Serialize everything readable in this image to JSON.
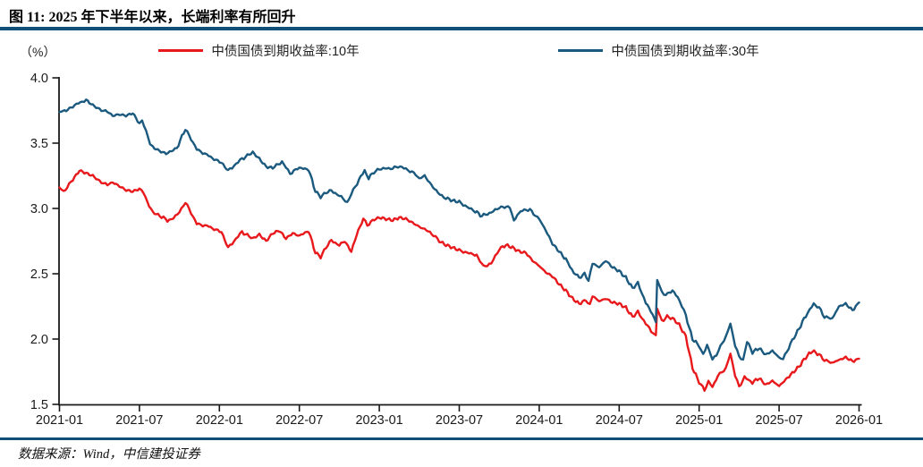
{
  "header": {
    "title": "图 11: 2025 年下半年以来，长端利率有所回升"
  },
  "unit_label": "（%）",
  "legend": {
    "items": [
      {
        "label": "中债国债到期收益率:10年",
        "color": "#e8191c"
      },
      {
        "label": "中债国债到期收益率:30年",
        "color": "#1b5a7e"
      }
    ]
  },
  "footer": {
    "text": "数据来源：Wind，中信建投证券"
  },
  "colors": {
    "divider": "#124f78",
    "axis": "#1a1a1a",
    "tick_text": "#1a1a1a"
  },
  "chart_data": {
    "type": "line",
    "title": "图 11: 2025 年下半年以来，长端利率有所回升",
    "xlabel": "",
    "ylabel": "（%）",
    "ylim": [
      1.5,
      4.0
    ],
    "y_ticks": [
      1.5,
      2.0,
      2.5,
      3.0,
      3.5,
      4.0
    ],
    "x_tick_labels": [
      "2021-01",
      "2021-07",
      "2022-01",
      "2022-07",
      "2023-01",
      "2023-07",
      "2024-01",
      "2024-07",
      "2025-01",
      "2025-07",
      "2026-01"
    ],
    "x_unit": "months_since_2021_01",
    "grid": false,
    "legend_position": "top",
    "series": [
      {
        "name": "中债国债到期收益率:10年",
        "color": "#e8191c",
        "points": [
          [
            0,
            3.16
          ],
          [
            0.3,
            3.13
          ],
          [
            1,
            3.22
          ],
          [
            1.5,
            3.29
          ],
          [
            2,
            3.27
          ],
          [
            2.5,
            3.25
          ],
          [
            3,
            3.21
          ],
          [
            3.6,
            3.18
          ],
          [
            4,
            3.2
          ],
          [
            4.5,
            3.17
          ],
          [
            5,
            3.14
          ],
          [
            5.5,
            3.13
          ],
          [
            6,
            3.15
          ],
          [
            6.3,
            3.12
          ],
          [
            6.6,
            3.05
          ],
          [
            7,
            2.97
          ],
          [
            7.8,
            2.93
          ],
          [
            8.1,
            2.9
          ],
          [
            8.85,
            2.95
          ],
          [
            9.45,
            3.05
          ],
          [
            10.3,
            2.88
          ],
          [
            11.2,
            2.86
          ],
          [
            12.15,
            2.82
          ],
          [
            12.65,
            2.7
          ],
          [
            13.7,
            2.82
          ],
          [
            14.5,
            2.77
          ],
          [
            15,
            2.8
          ],
          [
            15.5,
            2.75
          ],
          [
            16,
            2.81
          ],
          [
            16.5,
            2.83
          ],
          [
            17,
            2.77
          ],
          [
            17.5,
            2.81
          ],
          [
            18,
            2.79
          ],
          [
            18.7,
            2.83
          ],
          [
            19.2,
            2.66
          ],
          [
            19.6,
            2.63
          ],
          [
            20,
            2.7
          ],
          [
            20.4,
            2.76
          ],
          [
            21,
            2.72
          ],
          [
            21.4,
            2.75
          ],
          [
            21.9,
            2.67
          ],
          [
            22.3,
            2.8
          ],
          [
            22.8,
            2.92
          ],
          [
            23.1,
            2.87
          ],
          [
            23.5,
            2.91
          ],
          [
            24,
            2.93
          ],
          [
            24.5,
            2.92
          ],
          [
            25,
            2.91
          ],
          [
            25.5,
            2.93
          ],
          [
            26,
            2.92
          ],
          [
            26.5,
            2.89
          ],
          [
            27,
            2.86
          ],
          [
            27.8,
            2.82
          ],
          [
            28.5,
            2.75
          ],
          [
            29,
            2.72
          ],
          [
            29.5,
            2.7
          ],
          [
            30,
            2.68
          ],
          [
            30.6,
            2.66
          ],
          [
            31.3,
            2.64
          ],
          [
            31.8,
            2.56
          ],
          [
            32.4,
            2.58
          ],
          [
            33,
            2.69
          ],
          [
            33.5,
            2.72
          ],
          [
            34,
            2.7
          ],
          [
            34.5,
            2.67
          ],
          [
            35,
            2.66
          ],
          [
            35.5,
            2.6
          ],
          [
            36,
            2.56
          ],
          [
            36.5,
            2.51
          ],
          [
            37,
            2.48
          ],
          [
            37.5,
            2.42
          ],
          [
            38,
            2.37
          ],
          [
            38.5,
            2.31
          ],
          [
            39,
            2.27
          ],
          [
            39.5,
            2.3
          ],
          [
            39.8,
            2.26
          ],
          [
            40,
            2.33
          ],
          [
            40.5,
            2.29
          ],
          [
            41,
            2.31
          ],
          [
            41.5,
            2.28
          ],
          [
            42,
            2.27
          ],
          [
            42.5,
            2.24
          ],
          [
            43,
            2.17
          ],
          [
            43.4,
            2.21
          ],
          [
            44,
            2.12
          ],
          [
            44.4,
            2.06
          ],
          [
            44.75,
            2.03
          ],
          [
            44.85,
            2.23
          ],
          [
            45.2,
            2.14
          ],
          [
            45.6,
            2.17
          ],
          [
            46,
            2.16
          ],
          [
            46.5,
            2.11
          ],
          [
            47,
            2.02
          ],
          [
            47.5,
            1.78
          ],
          [
            48,
            1.67
          ],
          [
            48.4,
            1.61
          ],
          [
            48.7,
            1.67
          ],
          [
            49,
            1.63
          ],
          [
            49.4,
            1.72
          ],
          [
            50,
            1.78
          ],
          [
            50.35,
            1.89
          ],
          [
            50.7,
            1.72
          ],
          [
            51,
            1.63
          ],
          [
            51.4,
            1.71
          ],
          [
            52,
            1.67
          ],
          [
            52.5,
            1.7
          ],
          [
            53,
            1.65
          ],
          [
            53.5,
            1.68
          ],
          [
            54,
            1.64
          ],
          [
            54.5,
            1.69
          ],
          [
            55,
            1.74
          ],
          [
            55.5,
            1.79
          ],
          [
            56,
            1.86
          ],
          [
            56.5,
            1.91
          ],
          [
            57,
            1.88
          ],
          [
            57.4,
            1.84
          ],
          [
            58,
            1.82
          ],
          [
            58.5,
            1.84
          ],
          [
            59,
            1.86
          ],
          [
            59.5,
            1.83
          ],
          [
            60,
            1.85
          ]
        ]
      },
      {
        "name": "中债国债到期收益率:30年",
        "color": "#1b5a7e",
        "points": [
          [
            0,
            3.74
          ],
          [
            0.5,
            3.75
          ],
          [
            1,
            3.78
          ],
          [
            1.7,
            3.82
          ],
          [
            2,
            3.83
          ],
          [
            2.5,
            3.79
          ],
          [
            3,
            3.76
          ],
          [
            3.6,
            3.74
          ],
          [
            4,
            3.71
          ],
          [
            4.5,
            3.72
          ],
          [
            5,
            3.71
          ],
          [
            5.5,
            3.73
          ],
          [
            6,
            3.65
          ],
          [
            6.2,
            3.68
          ],
          [
            6.8,
            3.5
          ],
          [
            7,
            3.47
          ],
          [
            7.5,
            3.44
          ],
          [
            8,
            3.42
          ],
          [
            8.8,
            3.46
          ],
          [
            9.45,
            3.61
          ],
          [
            10.3,
            3.45
          ],
          [
            11.2,
            3.4
          ],
          [
            12.15,
            3.35
          ],
          [
            12.65,
            3.29
          ],
          [
            13.7,
            3.38
          ],
          [
            14.5,
            3.43
          ],
          [
            15,
            3.38
          ],
          [
            15.5,
            3.32
          ],
          [
            16,
            3.31
          ],
          [
            16.7,
            3.36
          ],
          [
            17.3,
            3.27
          ],
          [
            18,
            3.31
          ],
          [
            18.7,
            3.3
          ],
          [
            19.2,
            3.13
          ],
          [
            19.6,
            3.09
          ],
          [
            20,
            3.12
          ],
          [
            20.4,
            3.14
          ],
          [
            21,
            3.1
          ],
          [
            21.6,
            3.05
          ],
          [
            22.2,
            3.17
          ],
          [
            22.6,
            3.24
          ],
          [
            22.9,
            3.29
          ],
          [
            23.2,
            3.23
          ],
          [
            23.6,
            3.28
          ],
          [
            24,
            3.3
          ],
          [
            25,
            3.31
          ],
          [
            25.4,
            3.32
          ],
          [
            26,
            3.3
          ],
          [
            26.6,
            3.27
          ],
          [
            27,
            3.23
          ],
          [
            27.4,
            3.25
          ],
          [
            27.9,
            3.18
          ],
          [
            28.4,
            3.12
          ],
          [
            29,
            3.08
          ],
          [
            29.5,
            3.06
          ],
          [
            30,
            3.05
          ],
          [
            30.6,
            3.01
          ],
          [
            31.2,
            2.98
          ],
          [
            31.7,
            2.94
          ],
          [
            32.4,
            2.97
          ],
          [
            33,
            3.01
          ],
          [
            33.8,
            3.01
          ],
          [
            34.1,
            2.91
          ],
          [
            34.6,
            2.98
          ],
          [
            35.3,
            2.99
          ],
          [
            36,
            2.92
          ],
          [
            36.5,
            2.83
          ],
          [
            37,
            2.73
          ],
          [
            37.5,
            2.67
          ],
          [
            38,
            2.61
          ],
          [
            38.6,
            2.51
          ],
          [
            39,
            2.47
          ],
          [
            39.4,
            2.5
          ],
          [
            39.7,
            2.45
          ],
          [
            40,
            2.58
          ],
          [
            40.5,
            2.55
          ],
          [
            41,
            2.6
          ],
          [
            41.5,
            2.55
          ],
          [
            42,
            2.52
          ],
          [
            42.5,
            2.47
          ],
          [
            43,
            2.39
          ],
          [
            43.4,
            2.43
          ],
          [
            44,
            2.28
          ],
          [
            44.5,
            2.19
          ],
          [
            44.75,
            2.13
          ],
          [
            44.85,
            2.45
          ],
          [
            45.2,
            2.36
          ],
          [
            45.5,
            2.34
          ],
          [
            46,
            2.37
          ],
          [
            46.4,
            2.32
          ],
          [
            47,
            2.18
          ],
          [
            47.5,
            2.0
          ],
          [
            48,
            1.95
          ],
          [
            48.3,
            1.88
          ],
          [
            48.6,
            1.96
          ],
          [
            49,
            1.84
          ],
          [
            49.3,
            1.88
          ],
          [
            49.6,
            1.94
          ],
          [
            50,
            2.02
          ],
          [
            50.35,
            2.12
          ],
          [
            50.7,
            1.95
          ],
          [
            51,
            1.86
          ],
          [
            51.3,
            1.84
          ],
          [
            51.6,
            1.98
          ],
          [
            52,
            1.9
          ],
          [
            52.5,
            1.93
          ],
          [
            53,
            1.88
          ],
          [
            53.5,
            1.91
          ],
          [
            54,
            1.86
          ],
          [
            54.3,
            1.85
          ],
          [
            55,
            1.99
          ],
          [
            55.5,
            2.08
          ],
          [
            56,
            2.18
          ],
          [
            56.6,
            2.27
          ],
          [
            57,
            2.24
          ],
          [
            57.4,
            2.17
          ],
          [
            58,
            2.16
          ],
          [
            58.5,
            2.25
          ],
          [
            59,
            2.27
          ],
          [
            59.5,
            2.22
          ],
          [
            60,
            2.28
          ]
        ]
      }
    ]
  }
}
